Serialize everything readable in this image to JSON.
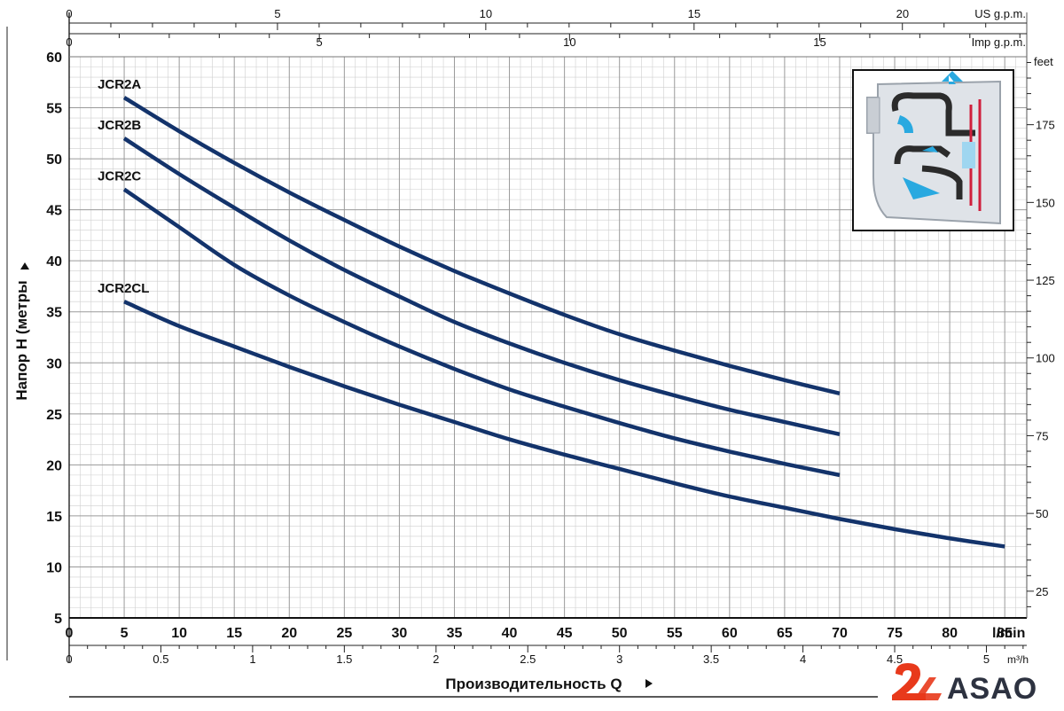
{
  "chart_data": {
    "type": "line",
    "title": "",
    "ylabel": "Напор H (метры",
    "xlabel": "Производительность Q",
    "ylim": [
      5,
      60
    ],
    "xlim": [
      0,
      87
    ],
    "x_unit_label": "l/min",
    "y_ticks": [
      5,
      10,
      15,
      20,
      25,
      30,
      35,
      40,
      45,
      50,
      55,
      60
    ],
    "x_ticks": [
      0,
      5,
      10,
      15,
      20,
      25,
      30,
      35,
      40,
      45,
      50,
      55,
      60,
      65,
      70,
      75,
      80,
      85
    ],
    "top_axis_us": {
      "label": "US g.p.m.",
      "ticks": [
        "0",
        "5",
        "10",
        "15",
        "20"
      ],
      "values_lpm": [
        0,
        18.93,
        37.85,
        56.78,
        75.71
      ]
    },
    "top_axis_imp": {
      "label": "Imp g.p.m.",
      "ticks": [
        "0",
        "5",
        "10",
        "15"
      ],
      "values_lpm": [
        0,
        22.73,
        45.46,
        68.19
      ]
    },
    "right_axis_feet": {
      "label": "feet",
      "ticks": [
        "25",
        "50",
        "75",
        "100",
        "125",
        "150",
        "175"
      ],
      "values_m": [
        7.62,
        15.24,
        22.86,
        30.48,
        38.1,
        45.72,
        53.34
      ]
    },
    "bottom_axis_m3h": {
      "label": "m³/h",
      "ticks": [
        "0",
        "0.5",
        "1",
        "1.5",
        "2",
        "2.5",
        "3",
        "3.5",
        "4",
        "4.5",
        "5"
      ],
      "values_lpm": [
        0,
        8.33,
        16.67,
        25,
        33.33,
        41.67,
        50,
        58.33,
        66.67,
        75,
        83.33
      ]
    },
    "series": [
      {
        "name": "JCR2A",
        "x": [
          5,
          10,
          15,
          20,
          25,
          30,
          35,
          40,
          45,
          50,
          55,
          60,
          65,
          70
        ],
        "y": [
          56,
          52.7,
          49.6,
          46.7,
          44.0,
          41.4,
          39.0,
          36.8,
          34.7,
          32.8,
          31.2,
          29.7,
          28.3,
          27
        ]
      },
      {
        "name": "JCR2B",
        "x": [
          5,
          10,
          15,
          20,
          25,
          30,
          35,
          40,
          45,
          50,
          55,
          60,
          65,
          70
        ],
        "y": [
          52,
          48.5,
          45.2,
          42.0,
          39.1,
          36.5,
          34.0,
          31.9,
          30.0,
          28.3,
          26.8,
          25.4,
          24.2,
          23
        ]
      },
      {
        "name": "JCR2C",
        "x": [
          5,
          10,
          15,
          20,
          25,
          30,
          35,
          40,
          45,
          50,
          55,
          60,
          65,
          70
        ],
        "y": [
          47,
          43.3,
          39.6,
          36.6,
          34.0,
          31.6,
          29.4,
          27.4,
          25.7,
          24.1,
          22.6,
          21.3,
          20.1,
          19
        ]
      },
      {
        "name": "JCR2CL",
        "x": [
          5,
          10,
          15,
          20,
          25,
          30,
          35,
          40,
          45,
          50,
          55,
          60,
          65,
          70,
          75,
          80,
          85
        ],
        "y": [
          36,
          33.6,
          31.6,
          29.6,
          27.7,
          25.9,
          24.2,
          22.5,
          21.0,
          19.6,
          18.2,
          16.9,
          15.8,
          14.7,
          13.7,
          12.8,
          12
        ]
      }
    ],
    "legend": "labels at curve starts (left)",
    "grid": true,
    "line_color": "#13336b"
  },
  "brand": {
    "logo_text": "ASAO",
    "logo_color": "#e8391b",
    "text_color": "#2d3240"
  }
}
